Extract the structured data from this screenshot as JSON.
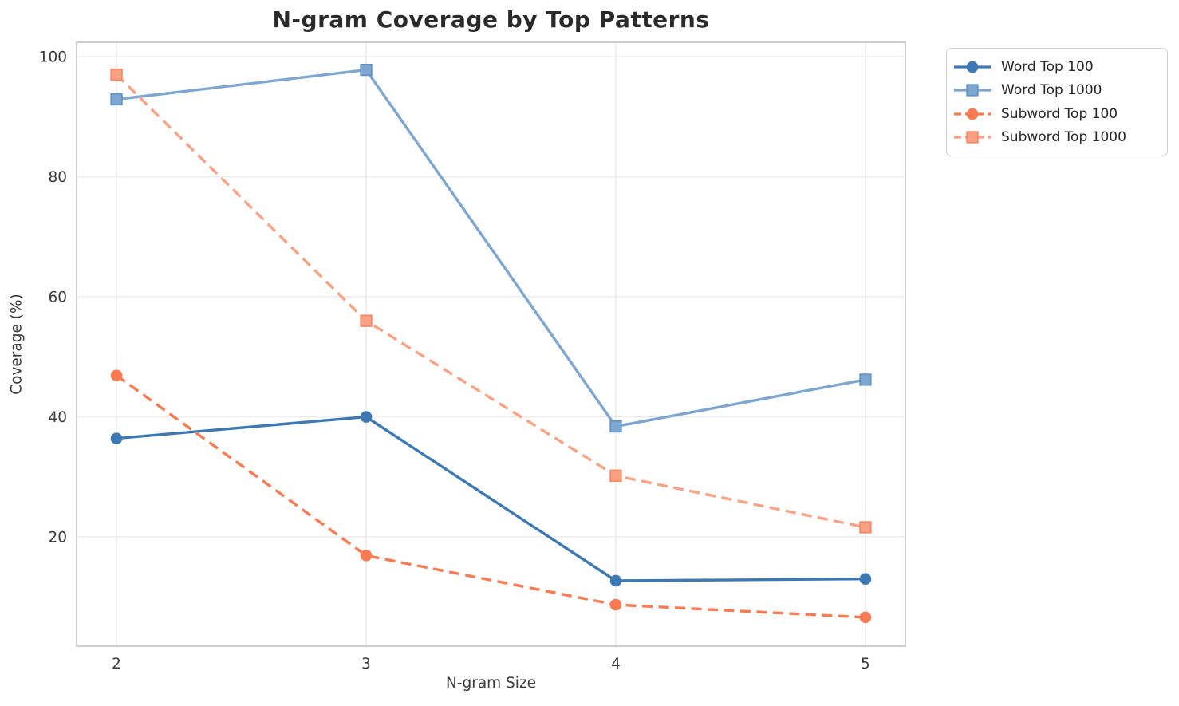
{
  "title": "N-gram Coverage by Top Patterns",
  "chart_data": {
    "type": "line",
    "title": "N-gram Coverage by Top Patterns",
    "xlabel": "N-gram Size",
    "ylabel": "Coverage (%)",
    "x": [
      2,
      3,
      4,
      5
    ],
    "xticks": [
      "2",
      "3",
      "4",
      "5"
    ],
    "yticks": [
      20,
      40,
      60,
      80,
      100
    ],
    "xlim": [
      1.84,
      5.16
    ],
    "ylim": [
      1.8,
      102.4
    ],
    "grid": true,
    "legend_position": "outside-upper-right",
    "series": [
      {
        "name": "Word Top 100",
        "values": [
          36.4,
          40.0,
          12.7,
          13.0
        ],
        "color": "#3C79B4",
        "edge": "#3C79B4",
        "linestyle": "solid",
        "marker": "circle"
      },
      {
        "name": "Word Top 1000",
        "values": [
          92.9,
          97.8,
          38.4,
          46.2
        ],
        "color": "#7FA6CE",
        "edge": "#5E93C6",
        "linestyle": "solid",
        "marker": "square"
      },
      {
        "name": "Subword Top 100",
        "values": [
          46.9,
          16.9,
          8.7,
          6.6
        ],
        "color": "#FA7A51",
        "edge": "#FA7A51",
        "linestyle": "dashed",
        "marker": "circle"
      },
      {
        "name": "Subword Top 1000",
        "values": [
          97.0,
          56.0,
          30.2,
          21.6
        ],
        "color": "#FCA284",
        "edge": "#FA8560",
        "linestyle": "dashed",
        "marker": "square"
      }
    ]
  },
  "style": {
    "grid_color": "#ebebeb",
    "spine_color": "#cdcdcd",
    "tick_color": "#3b3b3b",
    "text_color": "#262626"
  }
}
